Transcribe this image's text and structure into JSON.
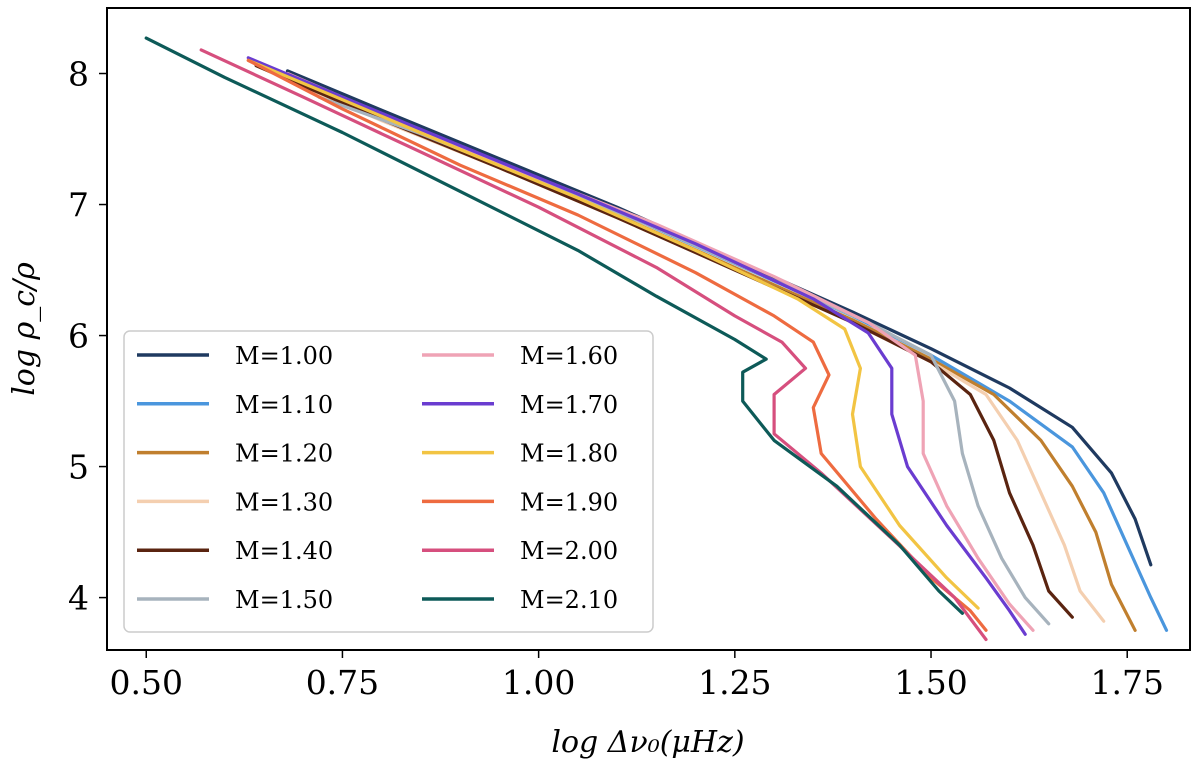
{
  "chart_data": {
    "type": "line",
    "title": "",
    "xlabel": "log Δν₀(μHz)",
    "ylabel": "log ρ_c/ρ",
    "xlim": [
      0.45,
      1.83
    ],
    "ylim": [
      3.6,
      8.5
    ],
    "xticks": [
      0.5,
      0.75,
      1.0,
      1.25,
      1.5,
      1.75
    ],
    "xtick_labels": [
      "0.50",
      "0.75",
      "1.00",
      "1.25",
      "1.50",
      "1.75"
    ],
    "yticks": [
      4,
      5,
      6,
      7,
      8
    ],
    "ytick_labels": [
      "4",
      "5",
      "6",
      "7",
      "8"
    ],
    "grid": false,
    "legend_position": "bottom-left",
    "legend_columns": 2,
    "series": [
      {
        "name": "M=1.00",
        "color": "#1f3a60",
        "points": [
          [
            0.68,
            8.02
          ],
          [
            0.8,
            7.72
          ],
          [
            0.95,
            7.35
          ],
          [
            1.1,
            6.98
          ],
          [
            1.25,
            6.58
          ],
          [
            1.4,
            6.18
          ],
          [
            1.5,
            5.9
          ],
          [
            1.6,
            5.6
          ],
          [
            1.68,
            5.3
          ],
          [
            1.73,
            4.95
          ],
          [
            1.76,
            4.6
          ],
          [
            1.78,
            4.25
          ]
        ]
      },
      {
        "name": "M=1.10",
        "color": "#4a96dd",
        "points": [
          [
            0.66,
            8.03
          ],
          [
            0.8,
            7.68
          ],
          [
            0.95,
            7.32
          ],
          [
            1.1,
            6.95
          ],
          [
            1.25,
            6.55
          ],
          [
            1.4,
            6.15
          ],
          [
            1.5,
            5.85
          ],
          [
            1.6,
            5.5
          ],
          [
            1.68,
            5.15
          ],
          [
            1.72,
            4.8
          ],
          [
            1.75,
            4.4
          ],
          [
            1.78,
            4.0
          ],
          [
            1.8,
            3.75
          ]
        ]
      },
      {
        "name": "M=1.20",
        "color": "#c07f2e",
        "points": [
          [
            0.65,
            8.05
          ],
          [
            0.8,
            7.66
          ],
          [
            0.95,
            7.3
          ],
          [
            1.1,
            6.92
          ],
          [
            1.25,
            6.52
          ],
          [
            1.4,
            6.12
          ],
          [
            1.5,
            5.82
          ],
          [
            1.58,
            5.55
          ],
          [
            1.64,
            5.2
          ],
          [
            1.68,
            4.85
          ],
          [
            1.71,
            4.5
          ],
          [
            1.73,
            4.1
          ],
          [
            1.76,
            3.75
          ]
        ]
      },
      {
        "name": "M=1.30",
        "color": "#f4cfb0",
        "points": [
          [
            0.64,
            8.06
          ],
          [
            0.8,
            7.64
          ],
          [
            0.95,
            7.28
          ],
          [
            1.1,
            6.9
          ],
          [
            1.25,
            6.5
          ],
          [
            1.4,
            6.1
          ],
          [
            1.5,
            5.8
          ],
          [
            1.57,
            5.55
          ],
          [
            1.61,
            5.2
          ],
          [
            1.64,
            4.8
          ],
          [
            1.67,
            4.4
          ],
          [
            1.69,
            4.05
          ],
          [
            1.72,
            3.82
          ]
        ]
      },
      {
        "name": "M=1.40",
        "color": "#5a2410",
        "points": [
          [
            0.64,
            8.06
          ],
          [
            0.8,
            7.65
          ],
          [
            0.95,
            7.28
          ],
          [
            1.1,
            6.9
          ],
          [
            1.25,
            6.5
          ],
          [
            1.4,
            6.1
          ],
          [
            1.5,
            5.8
          ],
          [
            1.55,
            5.55
          ],
          [
            1.58,
            5.2
          ],
          [
            1.6,
            4.8
          ],
          [
            1.63,
            4.4
          ],
          [
            1.65,
            4.05
          ],
          [
            1.68,
            3.85
          ]
        ]
      },
      {
        "name": "M=1.50",
        "color": "#a7b3bd",
        "points": [
          [
            0.72,
            7.82
          ],
          [
            0.85,
            7.54
          ],
          [
            1.0,
            7.18
          ],
          [
            1.15,
            6.82
          ],
          [
            1.3,
            6.42
          ],
          [
            1.42,
            6.1
          ],
          [
            1.5,
            5.85
          ],
          [
            1.53,
            5.5
          ],
          [
            1.54,
            5.1
          ],
          [
            1.56,
            4.7
          ],
          [
            1.59,
            4.3
          ],
          [
            1.62,
            4.0
          ],
          [
            1.65,
            3.8
          ]
        ]
      },
      {
        "name": "M=1.60",
        "color": "#efa3b5",
        "points": [
          [
            0.68,
            8.0
          ],
          [
            0.85,
            7.56
          ],
          [
            1.0,
            7.2
          ],
          [
            1.15,
            6.85
          ],
          [
            1.3,
            6.45
          ],
          [
            1.42,
            6.1
          ],
          [
            1.48,
            5.85
          ],
          [
            1.49,
            5.5
          ],
          [
            1.49,
            5.1
          ],
          [
            1.52,
            4.7
          ],
          [
            1.56,
            4.3
          ],
          [
            1.6,
            3.95
          ],
          [
            1.63,
            3.75
          ]
        ]
      },
      {
        "name": "M=1.70",
        "color": "#6a3cd0",
        "points": [
          [
            0.63,
            8.12
          ],
          [
            0.75,
            7.82
          ],
          [
            0.9,
            7.45
          ],
          [
            1.05,
            7.08
          ],
          [
            1.2,
            6.7
          ],
          [
            1.35,
            6.28
          ],
          [
            1.42,
            6.02
          ],
          [
            1.45,
            5.75
          ],
          [
            1.45,
            5.4
          ],
          [
            1.47,
            5.0
          ],
          [
            1.52,
            4.55
          ],
          [
            1.57,
            4.15
          ],
          [
            1.6,
            3.9
          ],
          [
            1.62,
            3.72
          ]
        ]
      },
      {
        "name": "M=1.80",
        "color": "#f2c443",
        "points": [
          [
            0.63,
            8.1
          ],
          [
            0.75,
            7.8
          ],
          [
            0.9,
            7.42
          ],
          [
            1.05,
            7.05
          ],
          [
            1.2,
            6.65
          ],
          [
            1.33,
            6.28
          ],
          [
            1.39,
            6.05
          ],
          [
            1.41,
            5.75
          ],
          [
            1.4,
            5.4
          ],
          [
            1.41,
            5.0
          ],
          [
            1.46,
            4.55
          ],
          [
            1.52,
            4.15
          ],
          [
            1.56,
            3.92
          ]
        ]
      },
      {
        "name": "M=1.90",
        "color": "#ee6b40",
        "points": [
          [
            0.63,
            8.1
          ],
          [
            0.75,
            7.73
          ],
          [
            0.9,
            7.3
          ],
          [
            1.05,
            6.92
          ],
          [
            1.2,
            6.48
          ],
          [
            1.3,
            6.15
          ],
          [
            1.35,
            5.95
          ],
          [
            1.37,
            5.7
          ],
          [
            1.35,
            5.45
          ],
          [
            1.36,
            5.1
          ],
          [
            1.43,
            4.6
          ],
          [
            1.5,
            4.15
          ],
          [
            1.55,
            3.9
          ],
          [
            1.57,
            3.75
          ]
        ]
      },
      {
        "name": "M=2.00",
        "color": "#d64f7e",
        "points": [
          [
            0.57,
            8.18
          ],
          [
            0.7,
            7.82
          ],
          [
            0.85,
            7.4
          ],
          [
            1.0,
            6.98
          ],
          [
            1.15,
            6.52
          ],
          [
            1.25,
            6.15
          ],
          [
            1.31,
            5.95
          ],
          [
            1.34,
            5.75
          ],
          [
            1.3,
            5.55
          ],
          [
            1.3,
            5.25
          ],
          [
            1.36,
            4.95
          ],
          [
            1.45,
            4.45
          ],
          [
            1.53,
            4.0
          ],
          [
            1.57,
            3.68
          ]
        ]
      },
      {
        "name": "M=2.10",
        "color": "#0d5a58",
        "points": [
          [
            0.5,
            8.27
          ],
          [
            0.6,
            7.97
          ],
          [
            0.75,
            7.55
          ],
          [
            0.9,
            7.1
          ],
          [
            1.05,
            6.65
          ],
          [
            1.15,
            6.3
          ],
          [
            1.25,
            5.97
          ],
          [
            1.29,
            5.82
          ],
          [
            1.26,
            5.72
          ],
          [
            1.26,
            5.5
          ],
          [
            1.3,
            5.2
          ],
          [
            1.38,
            4.85
          ],
          [
            1.46,
            4.4
          ],
          [
            1.51,
            4.05
          ],
          [
            1.54,
            3.88
          ]
        ]
      }
    ]
  }
}
